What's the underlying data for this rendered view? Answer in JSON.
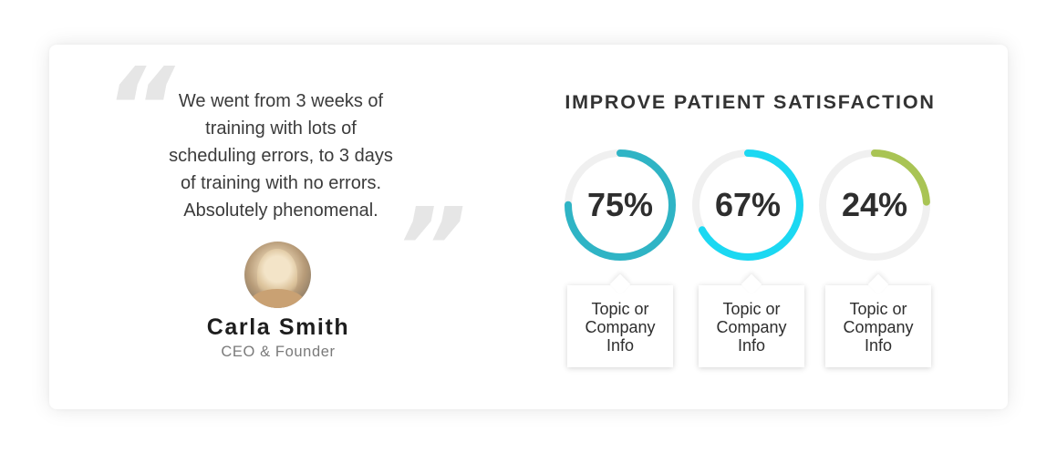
{
  "testimonial": {
    "quote_lines": [
      "We went from 3 weeks of",
      "training with lots of",
      "scheduling errors, to 3 days",
      "of training with no errors.",
      "Absolutely phenomenal."
    ],
    "author_name": "Carla Smith",
    "author_title": "CEO & Founder"
  },
  "stats": {
    "heading": "IMPROVE PATIENT SATISFACTION",
    "track_color": "#f0f0f0",
    "items": [
      {
        "label": "75%",
        "value": 75,
        "color": "#2fb4c5",
        "info_lines": [
          "Topic or",
          "Company",
          "Info"
        ]
      },
      {
        "label": "67%",
        "value": 67,
        "color": "#1bd8f2",
        "info_lines": [
          "Topic or",
          "Company",
          "Info"
        ]
      },
      {
        "label": "24%",
        "value": 24,
        "color": "#a9c454",
        "info_lines": [
          "Topic or",
          "Company",
          "Info"
        ]
      }
    ]
  }
}
